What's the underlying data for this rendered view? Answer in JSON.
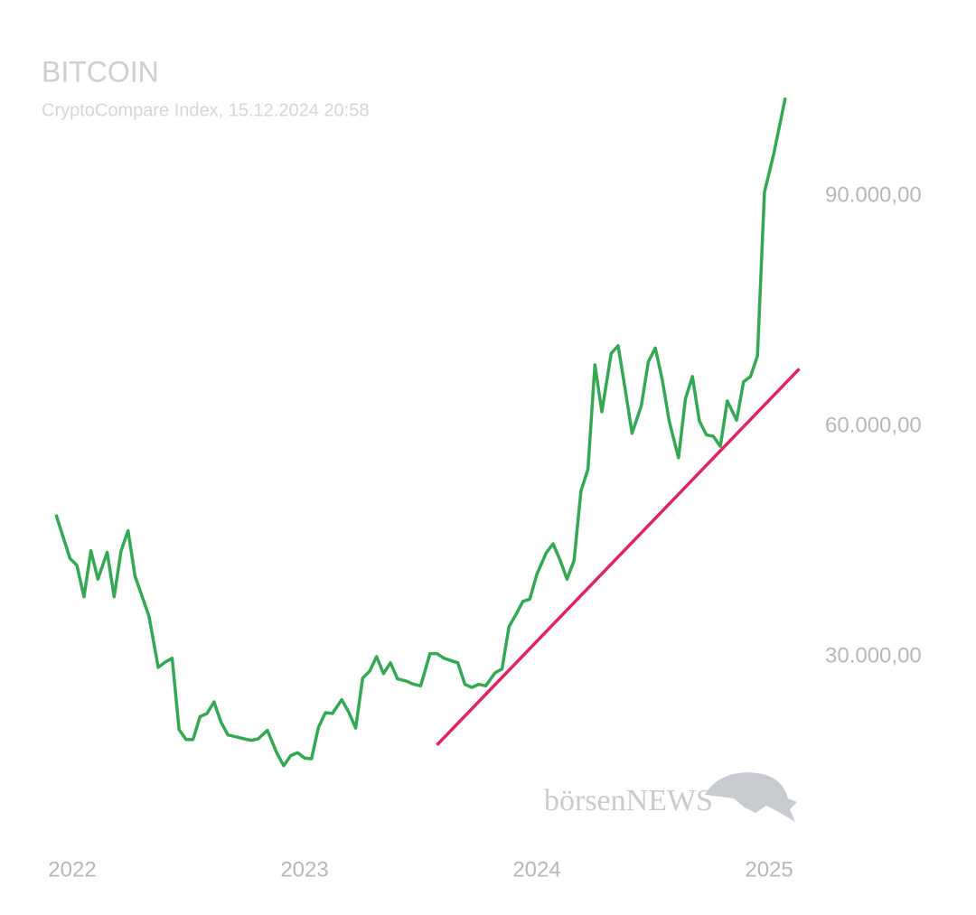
{
  "chart_data": {
    "type": "line",
    "title": "BITCOIN",
    "subtitle": "CryptoCompare Index, 15.12.2024 20:58",
    "watermark": "börsenNEWS",
    "xlim": [
      2021.9,
      2025.15
    ],
    "xticks": [
      2022,
      2023,
      2024,
      2025
    ],
    "ylim": [
      10000,
      105000
    ],
    "yticks": [
      {
        "value": 30000,
        "label": "30.000,00"
      },
      {
        "value": 60000,
        "label": "60.000,00"
      },
      {
        "value": 90000,
        "label": "90.000,00"
      }
    ],
    "grid": false,
    "series": [
      {
        "color": "#34a853",
        "x": [
          2021.93,
          2021.99,
          2022.02,
          2022.05,
          2022.08,
          2022.11,
          2022.15,
          2022.18,
          2022.21,
          2022.24,
          2022.27,
          2022.33,
          2022.37,
          2022.4,
          2022.43,
          2022.46,
          2022.49,
          2022.52,
          2022.55,
          2022.58,
          2022.61,
          2022.64,
          2022.67,
          2022.7,
          2022.74,
          2022.77,
          2022.8,
          2022.84,
          2022.88,
          2022.91,
          2022.94,
          2022.97,
          2023.0,
          2023.03,
          2023.06,
          2023.09,
          2023.12,
          2023.16,
          2023.19,
          2023.22,
          2023.25,
          2023.28,
          2023.31,
          2023.34,
          2023.37,
          2023.4,
          2023.44,
          2023.47,
          2023.5,
          2023.54,
          2023.57,
          2023.6,
          2023.63,
          2023.66,
          2023.69,
          2023.72,
          2023.75,
          2023.78,
          2023.82,
          2023.85,
          2023.88,
          2023.91,
          2023.94,
          2023.97,
          2024.0,
          2024.04,
          2024.07,
          2024.1,
          2024.13,
          2024.16,
          2024.19,
          2024.22,
          2024.25,
          2024.28,
          2024.32,
          2024.35,
          2024.38,
          2024.41,
          2024.45,
          2024.48,
          2024.51,
          2024.54,
          2024.57,
          2024.61,
          2024.64,
          2024.67,
          2024.7,
          2024.73,
          2024.76,
          2024.79,
          2024.82,
          2024.86,
          2024.89,
          2024.92,
          2024.95,
          2024.98,
          2025.02,
          2025.07
        ],
        "values": [
          48500,
          42800,
          41900,
          37800,
          43800,
          40100,
          43600,
          37800,
          43800,
          46400,
          40500,
          35300,
          28600,
          29300,
          29800,
          20500,
          19200,
          19200,
          22200,
          22600,
          24100,
          21500,
          19800,
          19600,
          19300,
          19100,
          19300,
          20400,
          17500,
          15800,
          17100,
          17500,
          16800,
          16700,
          20800,
          22700,
          22600,
          24400,
          22800,
          20700,
          27200,
          28100,
          30000,
          27800,
          29200,
          27100,
          26800,
          26400,
          26200,
          30400,
          30400,
          29800,
          29500,
          29200,
          26400,
          26000,
          26400,
          26200,
          27900,
          28400,
          33900,
          35500,
          37200,
          37500,
          40700,
          43500,
          44700,
          42600,
          40100,
          42500,
          51600,
          54400,
          68000,
          61900,
          69500,
          70500,
          64900,
          59100,
          62700,
          68400,
          70200,
          66100,
          60700,
          55900,
          63600,
          66500,
          60700,
          58900,
          58700,
          57400,
          63300,
          60800,
          65800,
          66500,
          69200,
          90500,
          95500,
          102800
        ]
      },
      {
        "color": "#e0245e",
        "x": [
          2023.57,
          2025.13
        ],
        "values": [
          18500,
          67500
        ]
      }
    ]
  }
}
